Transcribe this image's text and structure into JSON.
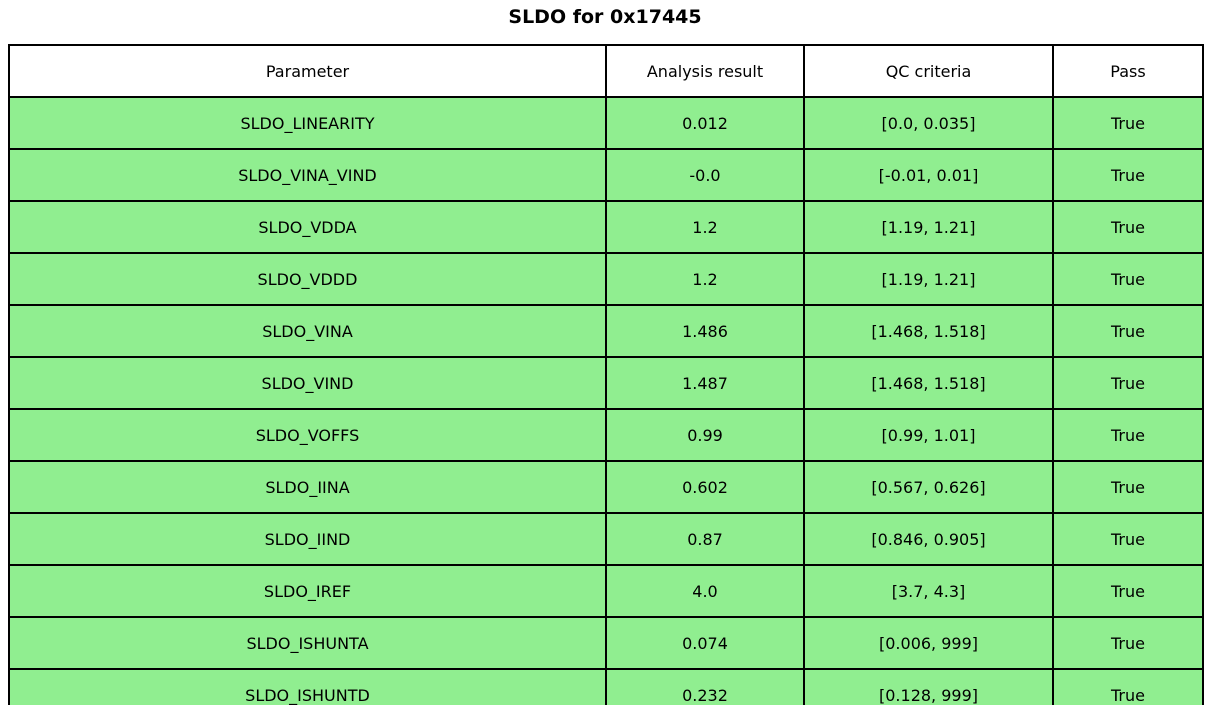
{
  "title": "SLDO for 0x17445",
  "colors": {
    "row_bg": "#90EE90",
    "header_bg": "#FFFFFF",
    "border": "#000000",
    "text": "#000000"
  },
  "chart_data": {
    "type": "table",
    "title": "SLDO for 0x17445",
    "columns": [
      "Parameter",
      "Analysis result",
      "QC criteria",
      "Pass"
    ],
    "rows": [
      [
        "SLDO_LINEARITY",
        "0.012",
        "[0.0, 0.035]",
        "True"
      ],
      [
        "SLDO_VINA_VIND",
        "-0.0",
        "[-0.01, 0.01]",
        "True"
      ],
      [
        "SLDO_VDDA",
        "1.2",
        "[1.19, 1.21]",
        "True"
      ],
      [
        "SLDO_VDDD",
        "1.2",
        "[1.19, 1.21]",
        "True"
      ],
      [
        "SLDO_VINA",
        "1.486",
        "[1.468, 1.518]",
        "True"
      ],
      [
        "SLDO_VIND",
        "1.487",
        "[1.468, 1.518]",
        "True"
      ],
      [
        "SLDO_VOFFS",
        "0.99",
        "[0.99, 1.01]",
        "True"
      ],
      [
        "SLDO_IINA",
        "0.602",
        "[0.567, 0.626]",
        "True"
      ],
      [
        "SLDO_IIND",
        "0.87",
        "[0.846, 0.905]",
        "True"
      ],
      [
        "SLDO_IREF",
        "4.0",
        "[3.7, 4.3]",
        "True"
      ],
      [
        "SLDO_ISHUNTA",
        "0.074",
        "[0.006, 999]",
        "True"
      ],
      [
        "SLDO_ISHUNTD",
        "0.232",
        "[0.128, 999]",
        "True"
      ]
    ],
    "layout_hints": {
      "header_background": "white",
      "row_background": "lightgreen",
      "grid": "on"
    }
  }
}
